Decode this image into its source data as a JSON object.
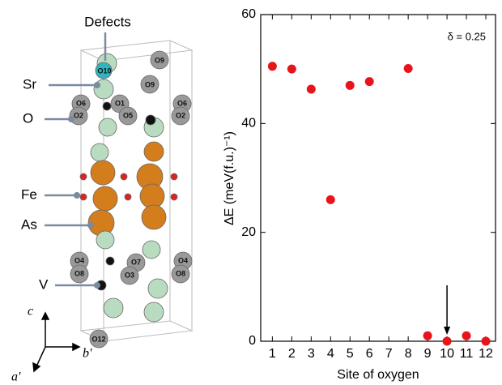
{
  "chart_data": {
    "type": "scatter",
    "annotation": "δ = 0.25",
    "xlabel": "Site of oxygen",
    "ylabel": "ΔE (meV(f.u.)⁻¹)",
    "x": [
      1,
      2,
      3,
      4,
      5,
      6,
      7,
      8,
      9,
      10,
      11,
      12
    ],
    "series": [
      {
        "color": "#e8141a",
        "values": [
          50.5,
          50,
          46.3,
          26,
          47,
          47.7,
          null,
          50.1,
          1,
          0,
          1,
          0
        ]
      }
    ],
    "xlim": [
      0.4,
      12.5
    ],
    "xticks": [
      1,
      2,
      3,
      4,
      5,
      6,
      7,
      8,
      9,
      10,
      11,
      12
    ],
    "ylim": [
      0,
      60
    ],
    "yticks": [
      0,
      20,
      40,
      60
    ]
  },
  "structure": {
    "labels": [
      "Defects",
      "Sr",
      "O",
      "Fe",
      "As",
      "V"
    ],
    "axes": [
      "c",
      "b'",
      "a'"
    ],
    "atom_labels": [
      "O10",
      "O9",
      "O9",
      "O6",
      "O1",
      "O6",
      "O2",
      "O5",
      "O2",
      "O4",
      "O7",
      "O4",
      "O8",
      "O3",
      "O8",
      "O12"
    ]
  }
}
